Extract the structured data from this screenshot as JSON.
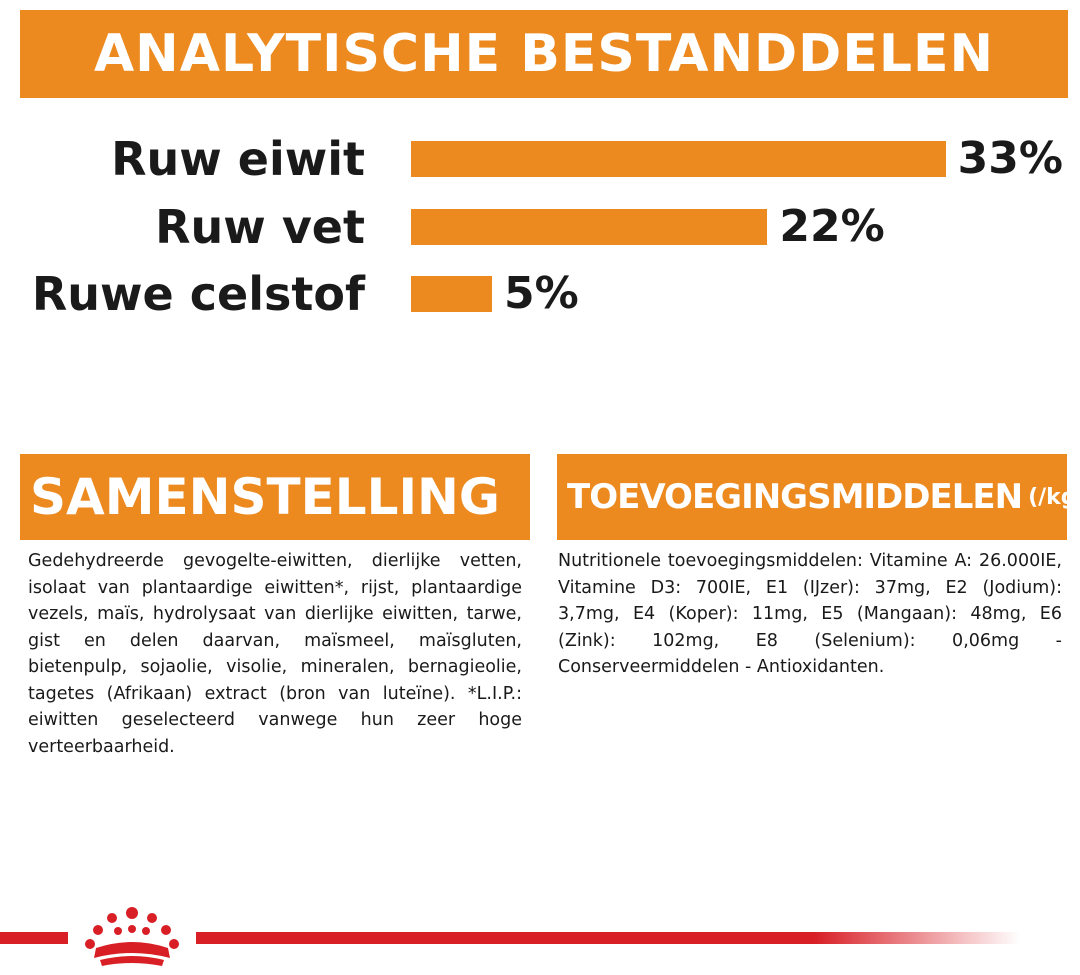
{
  "header": {
    "title": "ANALYTISCHE BESTANDDELEN"
  },
  "analysis": {
    "items": [
      {
        "label": "Ruw eiwit",
        "value": "33%",
        "percent": 33
      },
      {
        "label": "Ruw vet",
        "value": "22%",
        "percent": 22
      },
      {
        "label": "Ruwe celstof",
        "value": "5%",
        "percent": 5
      }
    ]
  },
  "composition": {
    "title": "SAMENSTELLING",
    "text": "Gedehydreerde gevogelte-eiwitten, dierlijke vetten, isolaat van plantaardige eiwitten*, rijst, plantaardige vezels, maïs, hydrolysaat van dierlijke eiwitten, tarwe, gist en delen daarvan, maïsmeel, maïsgluten, bietenpulp, sojaolie, visolie, mineralen, bernagieolie, tagetes (Afrikaan) extract (bron van luteïne). *L.I.P.: eiwitten geselecteerd vanwege hun zeer hoge verteerbaarheid."
  },
  "additives": {
    "title": "TOEVOEGINGSMIDDELEN",
    "unit": "(/kg)",
    "text": "Nutritionele toevoegingsmiddelen: Vitamine A: 26.000IE, Vitamine D3: 700IE, E1 (IJzer): 37mg, E2 (Jodium): 3,7mg, E4 (Koper): 11mg, E5 (Mangaan): 48mg, E6 (Zink): 102mg, E8 (Selenium): 0,06mg - Conserveermiddelen - Antioxidanten."
  },
  "colors": {
    "accent": "#ec8a1f",
    "brand_red": "#d81f26"
  },
  "footer": {
    "logo": "crown-logo-icon"
  }
}
